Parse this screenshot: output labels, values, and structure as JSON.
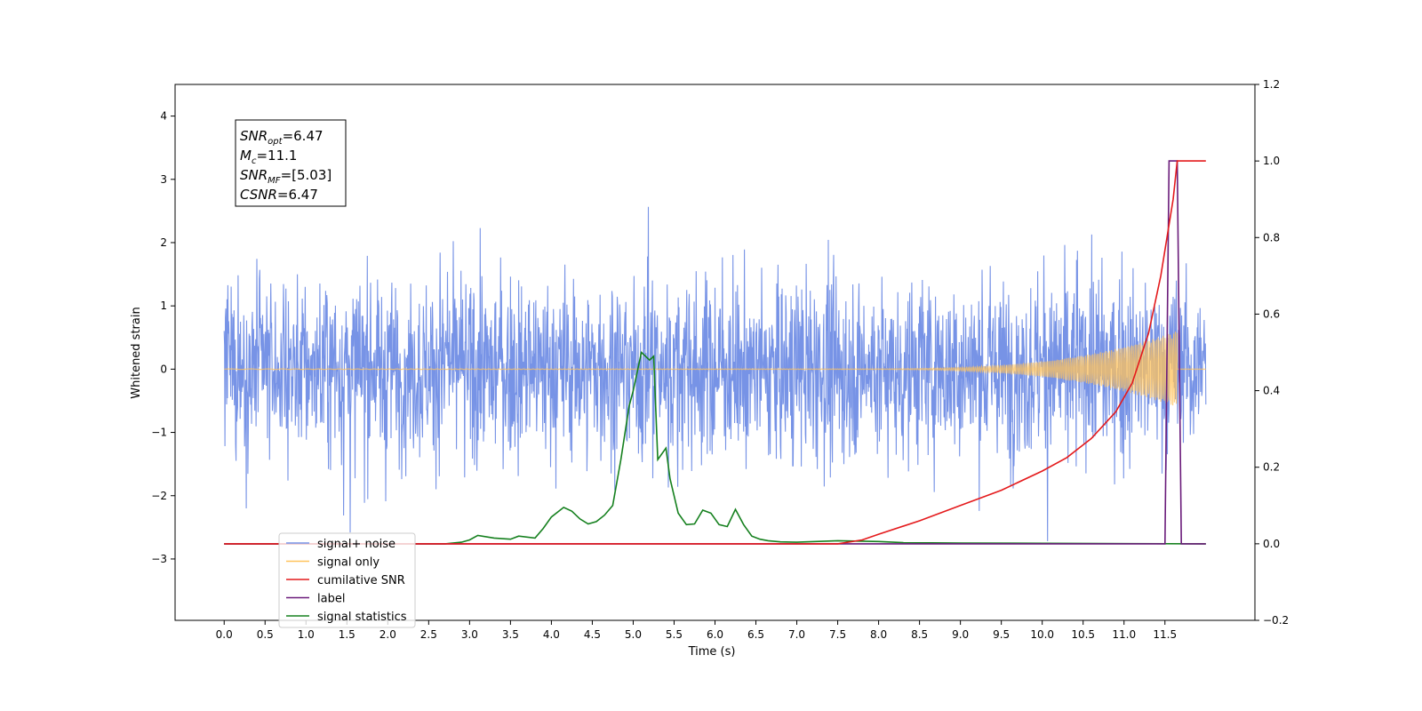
{
  "chart_data": {
    "type": "line",
    "title": "",
    "xlabel": "Time (s)",
    "ylabel": "Whitened strain",
    "y2label": "",
    "xlim": [
      -0.6,
      12.6
    ],
    "ylim": [
      -3.97,
      4.5
    ],
    "y2lim": [
      -0.2,
      1.2
    ],
    "xticks": [
      "0.0",
      "0.5",
      "1.0",
      "1.5",
      "2.0",
      "2.5",
      "3.0",
      "3.5",
      "4.0",
      "4.5",
      "5.0",
      "5.5",
      "6.0",
      "6.5",
      "7.0",
      "7.5",
      "8.0",
      "8.5",
      "9.0",
      "9.5",
      "10.0",
      "10.5",
      "11.0",
      "11.5"
    ],
    "yticks": [
      "−3",
      "−2",
      "−1",
      "0",
      "1",
      "2",
      "3",
      "4"
    ],
    "y2ticks": [
      "−0.2",
      "0.0",
      "0.2",
      "0.4",
      "0.6",
      "0.8",
      "1.0",
      "1.2"
    ],
    "grid": false,
    "legend_position": "lower-left",
    "annotation": {
      "lines": [
        {
          "name": "SNR",
          "sub": "opt",
          "value": "=6.47"
        },
        {
          "name": "M",
          "sub": "c",
          "value": "=11.1"
        },
        {
          "name": "SNR",
          "sub": "MF",
          "value": "=[5.03]"
        },
        {
          "name": "CSNR",
          "sub": "",
          "value": "=6.47"
        }
      ]
    },
    "series": [
      {
        "name": "signal+ noise",
        "color": "#7793e6",
        "axis": "left",
        "kind": "noise",
        "x_range": [
          0.0,
          12.0
        ],
        "amplitude_std": 1.0
      },
      {
        "name": "signal only",
        "color": "#ffc35c",
        "axis": "left",
        "kind": "chirp",
        "x_range": [
          0.0,
          12.0
        ]
      },
      {
        "name": "cumilative SNR",
        "color": "#e41a1c",
        "axis": "right",
        "x": [
          0.0,
          7.5,
          7.8,
          8.0,
          8.5,
          9.0,
          9.5,
          10.0,
          10.3,
          10.6,
          10.9,
          11.1,
          11.3,
          11.45,
          11.6,
          11.65,
          12.0
        ],
        "y": [
          0.0,
          0.0,
          0.01,
          0.025,
          0.06,
          0.1,
          0.14,
          0.19,
          0.225,
          0.275,
          0.345,
          0.42,
          0.55,
          0.7,
          0.9,
          1.0,
          1.0
        ]
      },
      {
        "name": "label",
        "color": "#6a1b7a",
        "axis": "right",
        "x": [
          0.0,
          11.5,
          11.55,
          11.65,
          11.7,
          12.0
        ],
        "y": [
          0.0,
          0.0,
          1.0,
          1.0,
          0.0,
          0.0
        ]
      },
      {
        "name": "signal statistics",
        "color": "#15801e",
        "axis": "right",
        "x": [
          0.0,
          2.7,
          2.9,
          3.0,
          3.1,
          3.3,
          3.5,
          3.6,
          3.8,
          3.9,
          4.0,
          4.15,
          4.25,
          4.35,
          4.45,
          4.55,
          4.65,
          4.75,
          4.85,
          4.95,
          5.0,
          5.05,
          5.1,
          5.2,
          5.25,
          5.3,
          5.4,
          5.45,
          5.55,
          5.65,
          5.75,
          5.85,
          5.95,
          6.05,
          6.15,
          6.25,
          6.35,
          6.45,
          6.55,
          6.65,
          6.8,
          7.0,
          7.5,
          8.0,
          8.3,
          9.0,
          12.0
        ],
        "y": [
          0.0,
          0.0,
          0.004,
          0.01,
          0.022,
          0.015,
          0.012,
          0.02,
          0.015,
          0.04,
          0.07,
          0.095,
          0.085,
          0.065,
          0.052,
          0.058,
          0.075,
          0.1,
          0.22,
          0.36,
          0.4,
          0.45,
          0.5,
          0.48,
          0.49,
          0.22,
          0.25,
          0.17,
          0.08,
          0.05,
          0.052,
          0.088,
          0.08,
          0.05,
          0.045,
          0.09,
          0.05,
          0.02,
          0.012,
          0.008,
          0.005,
          0.004,
          0.008,
          0.006,
          0.003,
          0.002,
          0.0
        ]
      }
    ]
  }
}
